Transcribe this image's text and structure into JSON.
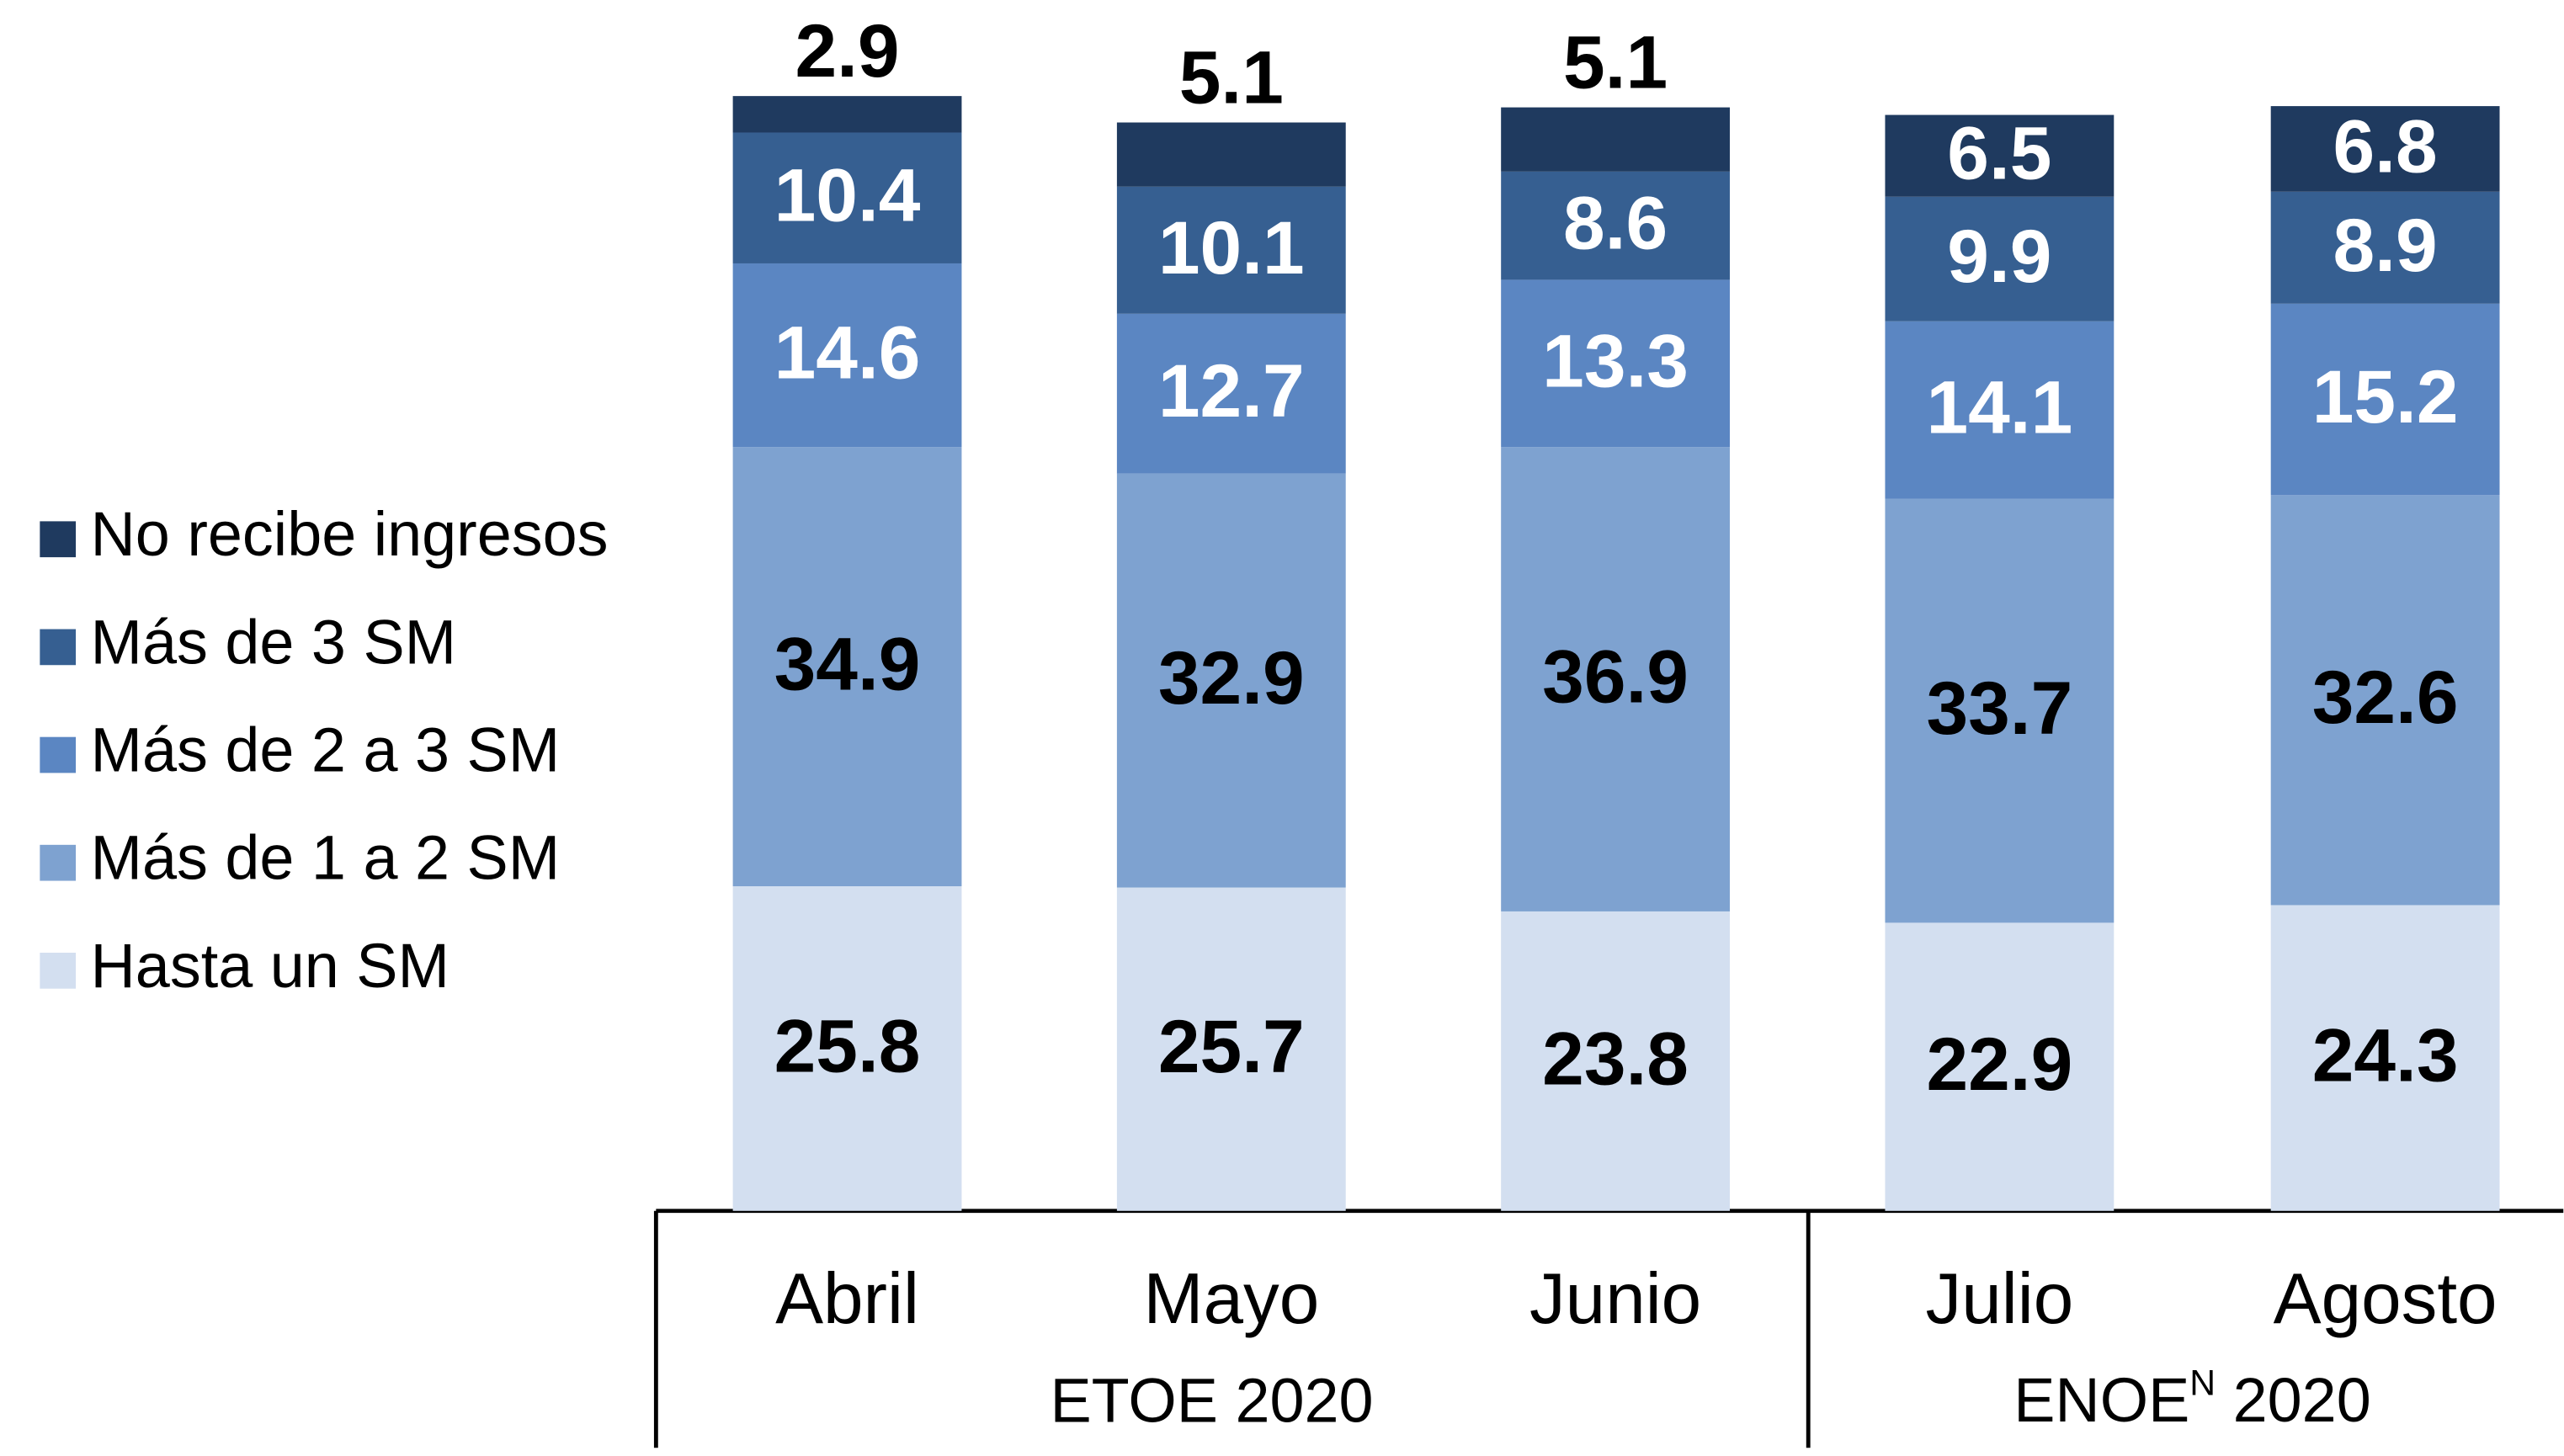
{
  "chart_data": {
    "type": "stacked_bar",
    "categories": [
      "Abril",
      "Mayo",
      "Junio",
      "Julio",
      "Agosto"
    ],
    "group_labels": [
      {
        "text": "ETOE 2020"
      },
      {
        "text": "ENOE",
        "superscript": "N",
        "text_after": " 2020"
      }
    ],
    "series": [
      {
        "name": "Hasta un SM",
        "color": "#d3dff0",
        "label_color": "#000000",
        "values": [
          25.8,
          25.7,
          23.8,
          22.9,
          24.3
        ]
      },
      {
        "name": "Más de 1 a 2 SM",
        "color": "#7ea2d0",
        "label_color": "#000000",
        "values": [
          34.9,
          32.9,
          36.9,
          33.7,
          32.6
        ]
      },
      {
        "name": "Más de 2 a 3 SM",
        "color": "#5b86c2",
        "label_color": "#ffffff",
        "values": [
          14.6,
          12.7,
          13.3,
          14.1,
          15.2
        ]
      },
      {
        "name": "Más de 3 SM",
        "color": "#365f91",
        "label_color": "#ffffff",
        "values": [
          10.4,
          10.1,
          8.6,
          9.9,
          8.9
        ]
      },
      {
        "name": "No recibe ingresos",
        "color": "#1f3a5f",
        "label_color": "#ffffff",
        "values": [
          2.9,
          5.1,
          5.1,
          6.5,
          6.8
        ]
      }
    ],
    "ylim": [
      0,
      100
    ],
    "legend": "left"
  }
}
